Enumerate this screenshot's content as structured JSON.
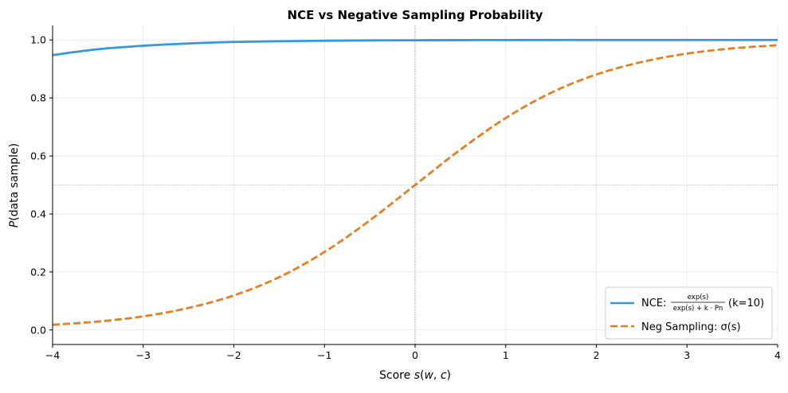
{
  "chart_data": {
    "type": "line",
    "title": "NCE vs Negative Sampling Probability",
    "xlabel": "Score s(w, c)",
    "ylabel": "P(data sample)",
    "xlim": [
      -4,
      4
    ],
    "ylim": [
      -0.05,
      1.05
    ],
    "xticks": [
      -4,
      -3,
      -2,
      -1,
      0,
      1,
      2,
      3,
      4
    ],
    "xtick_labels": [
      "−4",
      "−3",
      "−2",
      "−1",
      "0",
      "1",
      "2",
      "3",
      "4"
    ],
    "yticks": [
      0.0,
      0.2,
      0.4,
      0.6,
      0.8,
      1.0
    ],
    "ytick_labels": [
      "0.0",
      "0.2",
      "0.4",
      "0.6",
      "0.8",
      "1.0"
    ],
    "grid": true,
    "legend_position": "lower-right",
    "reference_lines": {
      "x": 0,
      "y": 0.5
    },
    "x": [
      -4,
      -3.5,
      -3,
      -2.5,
      -2,
      -1.5,
      -1,
      -0.5,
      0,
      0.5,
      1,
      1.5,
      2,
      2.5,
      3,
      3.5,
      4
    ],
    "series": [
      {
        "name": "NCE: exp(s) / (exp(s) + k·Pn) (k=10)",
        "legend_prefix": "NCE:",
        "legend_numerator": "exp(s)",
        "legend_denominator": "exp(s) + k · Pn",
        "legend_suffix": "(k=10)",
        "color": "#3498db",
        "style": "solid",
        "values": [
          0.948,
          0.968,
          0.98,
          0.988,
          0.993,
          0.9955,
          0.9973,
          0.9984,
          0.999,
          0.9994,
          0.9996,
          0.9998,
          0.9999,
          0.9999,
          1.0,
          1.0,
          1.0
        ]
      },
      {
        "name": "Neg Sampling: σ(s)",
        "color": "#e67e22",
        "style": "dashed",
        "values": [
          0.018,
          0.029,
          0.047,
          0.076,
          0.119,
          0.182,
          0.269,
          0.378,
          0.5,
          0.622,
          0.731,
          0.818,
          0.881,
          0.924,
          0.953,
          0.971,
          0.982
        ]
      }
    ]
  }
}
